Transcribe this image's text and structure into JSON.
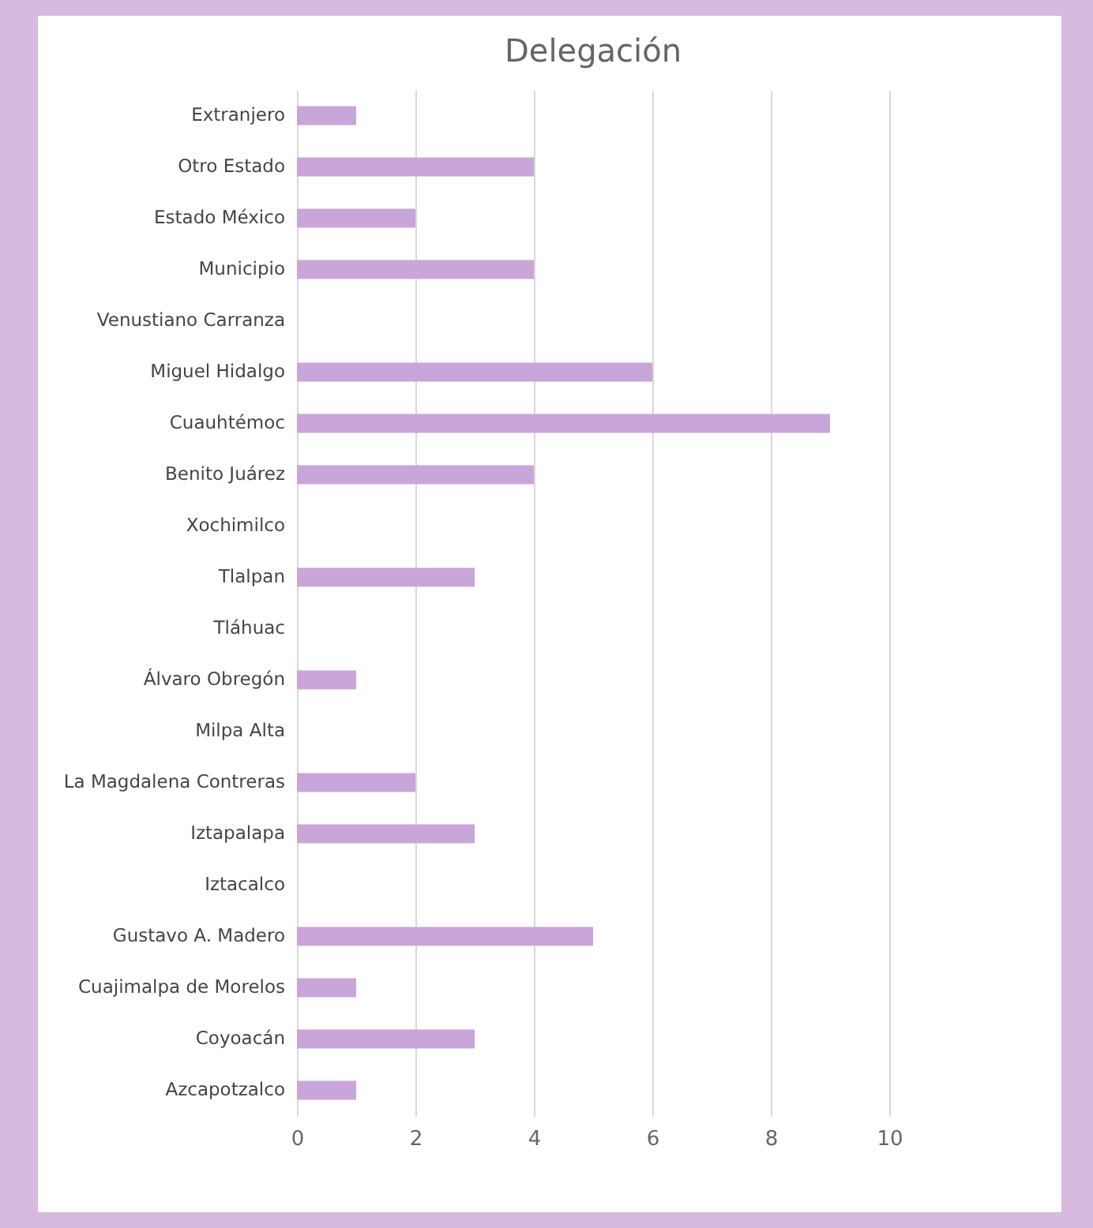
{
  "chart_data": {
    "type": "bar",
    "orientation": "horizontal",
    "title": "Delegación",
    "categories": [
      "Extranjero",
      "Otro Estado",
      "Estado México",
      "Municipio",
      "Venustiano Carranza",
      "Miguel Hidalgo",
      "Cuauhtémoc",
      "Benito Juárez",
      "Xochimilco",
      "Tlalpan",
      "Tláhuac",
      "Álvaro Obregón",
      "Milpa Alta",
      "La Magdalena Contreras",
      "Iztapalapa",
      "Iztacalco",
      "Gustavo A. Madero",
      "Cuajimalpa de Morelos",
      "Coyoacán",
      "Azcapotzalco"
    ],
    "values": [
      1,
      4,
      2,
      4,
      0,
      6,
      9,
      4,
      0,
      3,
      0,
      1,
      0,
      2,
      3,
      0,
      5,
      1,
      3,
      1
    ],
    "color": "#c9a6d9",
    "xlim": [
      0,
      10
    ],
    "xticks": [
      0,
      2,
      4,
      6,
      8,
      10
    ],
    "grid": "x"
  }
}
